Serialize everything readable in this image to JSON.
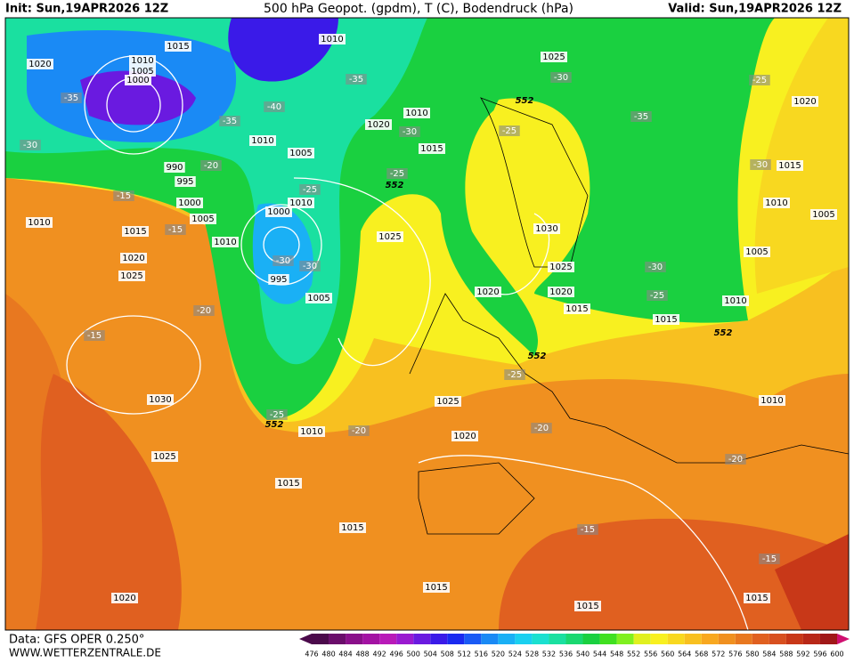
{
  "header": {
    "init": "Init: Sun,19APR2026 12Z",
    "title": "500 hPa Geopot. (gpdm), T (C), Bodendruck (hPa)",
    "valid": "Valid: Sun,19APR2026 12Z"
  },
  "footer": {
    "data_source": "Data: GFS OPER 0.250°",
    "website": "WWW.WETTERZENTRALE.DE"
  },
  "colorbar": {
    "values": [
      476,
      480,
      484,
      488,
      492,
      496,
      500,
      504,
      508,
      512,
      516,
      520,
      524,
      528,
      532,
      536,
      540,
      544,
      548,
      552,
      556,
      560,
      564,
      568,
      572,
      576,
      580,
      584,
      588,
      592,
      596,
      600
    ],
    "colors": [
      "#4b0a4b",
      "#6a0d6a",
      "#8a108a",
      "#a313a3",
      "#b81ab8",
      "#9a1ad0",
      "#6a1ae0",
      "#3a1ae8",
      "#1a2af0",
      "#1a5af5",
      "#1a8af5",
      "#1ab0f5",
      "#1ad0f0",
      "#1ae0d0",
      "#1ae0a0",
      "#1ad870",
      "#1ad040",
      "#40e020",
      "#80f020",
      "#e0f020",
      "#f8f020",
      "#f8d820",
      "#f8c020",
      "#f8a820",
      "#f09020",
      "#e87820",
      "#e06020",
      "#d85020",
      "#c83818",
      "#b82818",
      "#a01818",
      "#d01070"
    ]
  },
  "map_labels": {
    "isobars": [
      "1015",
      "1020",
      "1010",
      "1005",
      "1000",
      "1010",
      "1025",
      "1010",
      "1020",
      "1015",
      "1005",
      "1010",
      "990",
      "995",
      "1000",
      "1005",
      "1010",
      "1010",
      "1000",
      "995",
      "1005",
      "1025",
      "1030",
      "1025",
      "1020",
      "1020",
      "1015",
      "1015",
      "1010",
      "1005",
      "1010",
      "1005",
      "1015",
      "1020",
      "1010",
      "1015",
      "1020",
      "1025",
      "1030",
      "1025",
      "1015",
      "1010",
      "1025",
      "1020",
      "1015",
      "1015",
      "1015",
      "1015",
      "1010",
      "1020"
    ],
    "temperatures": [
      "-35",
      "-40",
      "-35",
      "-35",
      "-30",
      "-35",
      "-25",
      "-30",
      "-30",
      "-25",
      "-25",
      "-30",
      "-30",
      "-25",
      "-20",
      "-15",
      "-15",
      "-20",
      "-15",
      "-30",
      "-25",
      "-25",
      "-20",
      "-25",
      "-20",
      "-20",
      "-15",
      "-15",
      "-30"
    ],
    "height_552": [
      "552",
      "552",
      "552",
      "552",
      "552"
    ]
  }
}
